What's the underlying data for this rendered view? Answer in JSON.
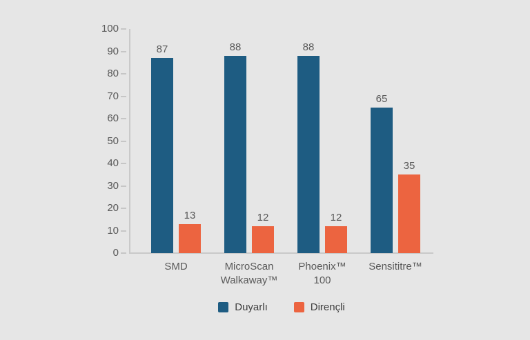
{
  "chart_data": {
    "type": "bar",
    "title": "",
    "categories": [
      "SMD",
      "MicroScan Walkaway™",
      "Phoenix™ 100",
      "Sensititre™"
    ],
    "series": [
      {
        "name": "Duyarlı",
        "color": "#1e5c82",
        "values": [
          87,
          88,
          88,
          65
        ]
      },
      {
        "name": "Dirençli",
        "color": "#ec6440",
        "values": [
          13,
          12,
          12,
          35
        ]
      }
    ],
    "ylim": [
      0,
      100
    ],
    "yticks": [
      0,
      10,
      20,
      30,
      40,
      50,
      60,
      70,
      80,
      90,
      100
    ],
    "grid": false,
    "value_labels": true,
    "legend_position": "bottom"
  },
  "colors": {
    "background": "#e6e6e6",
    "axis_line": "#c9c9c9",
    "tick_label": "#595959",
    "value_label": "#595959",
    "category_label": "#595959",
    "legend_label": "#3f3f3f"
  }
}
